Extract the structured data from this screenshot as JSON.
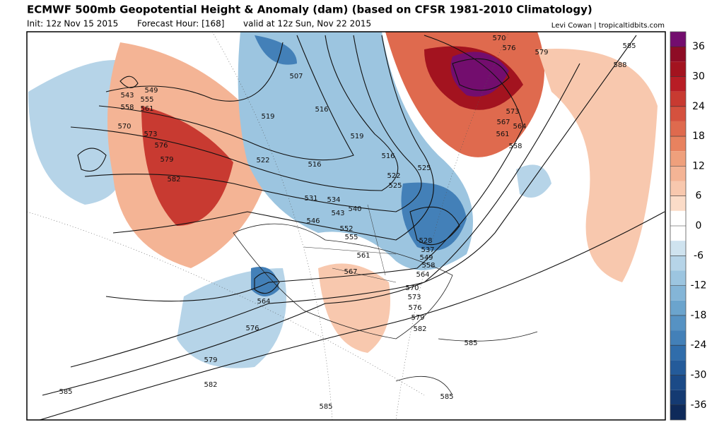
{
  "header": {
    "title": "ECMWF 500mb Geopotential Height & Anomaly (dam) (based on CFSR 1981-2010 Climatology)",
    "init": "Init: 12z Nov 15 2015",
    "forecast": "Forecast Hour: [168]",
    "valid": "valid at 12z Sun, Nov 22 2015",
    "credit": "Levi Cowan | tropicaltidbits.com"
  },
  "colorbar": {
    "range": [
      -39,
      39
    ],
    "ticks": [
      36,
      30,
      24,
      18,
      12,
      6,
      0,
      -6,
      -12,
      -18,
      -24,
      -30,
      -36
    ],
    "colors": [
      "#730d6e",
      "#8e0c25",
      "#a3131f",
      "#b81d25",
      "#c83a31",
      "#d5513e",
      "#df6a4e",
      "#e8825f",
      "#efa07c",
      "#f4b495",
      "#f8c8ae",
      "#fbdcc8",
      "#ffffff",
      "#ffffff",
      "#cfe3ef",
      "#b6d4e8",
      "#9cc5e0",
      "#84b5d7",
      "#6ba4cd",
      "#5692c3",
      "#4380b8",
      "#306dab",
      "#245b9a",
      "#1b4a87",
      "#143a72",
      "#0e2a5a"
    ]
  },
  "contour_labels": [
    "543",
    "549",
    "555",
    "558",
    "561",
    "570",
    "573",
    "576",
    "579",
    "582",
    "507",
    "519",
    "516",
    "519",
    "522",
    "516",
    "516",
    "522",
    "525",
    "525",
    "531",
    "534",
    "543",
    "540",
    "546",
    "552",
    "555",
    "561",
    "567",
    "528",
    "537",
    "549",
    "558",
    "564",
    "570",
    "573",
    "576",
    "579",
    "582",
    "564",
    "576",
    "579",
    "582",
    "585",
    "585",
    "585",
    "585",
    "570",
    "576",
    "579",
    "585",
    "588",
    "573",
    "567",
    "564",
    "561",
    "558"
  ]
}
